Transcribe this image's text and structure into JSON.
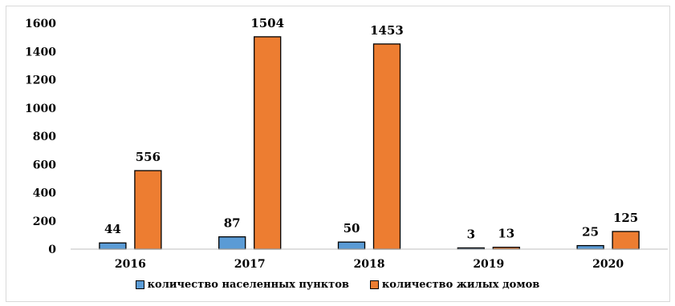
{
  "chart_data": {
    "type": "bar",
    "categories": [
      "2016",
      "2017",
      "2018",
      "2019",
      "2020"
    ],
    "series": [
      {
        "name": "количество населенных пунктов",
        "values": [
          44,
          87,
          50,
          3,
          25
        ],
        "color": "#5b9bd5"
      },
      {
        "name": "количество жилых домов",
        "values": [
          556,
          1504,
          1453,
          13,
          125
        ],
        "color": "#ed7d31"
      }
    ],
    "y_ticks": [
      "0",
      "200",
      "400",
      "600",
      "800",
      "1000",
      "1200",
      "1400",
      "1600"
    ],
    "ylim": [
      0,
      1600
    ],
    "grid": false,
    "legend_position": "bottom"
  }
}
